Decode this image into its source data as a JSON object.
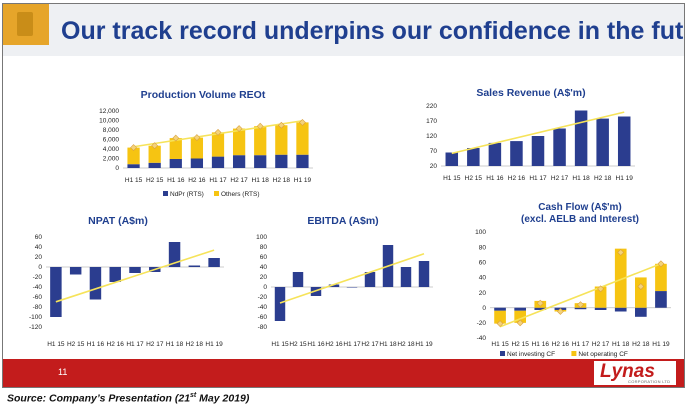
{
  "slide": {
    "title": "Our track record underpins our confidence in the future",
    "page_number": "11",
    "logo_text": "Lynas",
    "logo_subtext": "CORPORATION LTD",
    "source_text": "Source: Company’s Presentation (21",
    "source_sup": "st",
    "source_tail": " May 2019)"
  },
  "colors": {
    "navy": "#2b3d8f",
    "yellow": "#f6c412",
    "trend": "#f6e35a",
    "title_blue": "#1f3f8f",
    "footer_red": "#c31c1c"
  },
  "chart_data": [
    {
      "id": "production",
      "type": "bar",
      "stacked": true,
      "title": "Production Volume REOt",
      "categories": [
        "H1 15",
        "H2 15",
        "H1 16",
        "H2 16",
        "H1 17",
        "H2 17",
        "H1 18",
        "H2 18",
        "H1 19"
      ],
      "series": [
        {
          "name": "NdPr (RTS)",
          "values": [
            800,
            1100,
            1900,
            2000,
            2400,
            2700,
            2700,
            2800,
            2800
          ]
        },
        {
          "name": "Others (RTS)",
          "values": [
            3500,
            3600,
            4400,
            4400,
            5100,
            5600,
            6100,
            6200,
            6800
          ]
        }
      ],
      "total_markers": [
        4300,
        4700,
        6300,
        6400,
        7500,
        8300,
        8800,
        9000,
        9600
      ],
      "trendline": true,
      "ylim": [
        0,
        12000
      ],
      "yticks": [
        "0",
        "2,000",
        "4,000",
        "6,000",
        "8,000",
        "10,000",
        "12,000"
      ],
      "legend": [
        "NdPr (RTS)",
        "Others (RTS)"
      ]
    },
    {
      "id": "sales",
      "type": "bar",
      "title": "Sales Revenue (A$'m)",
      "categories": [
        "H1 15",
        "H2 15",
        "H1 16",
        "H2 16",
        "H1 17",
        "H2 17",
        "H1 18",
        "H2 18",
        "H1 19"
      ],
      "values": [
        65,
        80,
        97,
        103,
        120,
        145,
        205,
        178,
        185
      ],
      "trendline": true,
      "ylim": [
        20,
        220
      ],
      "yticks": [
        "20",
        "70",
        "120",
        "170",
        "220"
      ]
    },
    {
      "id": "npat",
      "type": "bar",
      "title": "NPAT (A$m)",
      "categories": [
        "H1 15",
        "H2 15",
        "H1 16",
        "H2 16",
        "H1 17",
        "H2 17",
        "H1 18",
        "H2 18",
        "H1 19"
      ],
      "values": [
        -100,
        -15,
        -65,
        -30,
        -12,
        -10,
        50,
        3,
        18
      ],
      "trendline": true,
      "ylim": [
        -120,
        60
      ],
      "yticks": [
        "-120",
        "-100",
        "-80",
        "-60",
        "-40",
        "-20",
        "0",
        "20",
        "40",
        "60"
      ]
    },
    {
      "id": "ebitda",
      "type": "bar",
      "title": "EBITDA (A$m)",
      "categories": [
        "H1 15",
        "H2 15",
        "H1 16",
        "H2 16",
        "H1 17",
        "H2 17",
        "H1 18",
        "H2 18",
        "H1 19"
      ],
      "values": [
        -68,
        30,
        -18,
        5,
        0,
        30,
        84,
        40,
        52
      ],
      "trendline": true,
      "ylim": [
        -80,
        100
      ],
      "yticks": [
        "-80",
        "-60",
        "-40",
        "-20",
        "0",
        "20",
        "40",
        "60",
        "80",
        "100"
      ]
    },
    {
      "id": "cashflow",
      "type": "bar",
      "stacked": true,
      "title": "Cash Flow (A$'m)",
      "subtitle": "(excl. AELB and Interest)",
      "categories": [
        "H1 15",
        "H2 15",
        "H1 16",
        "H2 16",
        "H1 17",
        "H2 17",
        "H1 18",
        "H2 18",
        "H1 19"
      ],
      "series": [
        {
          "name": "Net investing CF",
          "values": [
            -4,
            -4,
            -3,
            -3,
            -2,
            -3,
            -5,
            -12,
            22
          ]
        },
        {
          "name": "Net operating CF",
          "values": [
            -17,
            -16,
            9,
            -2,
            6,
            28,
            78,
            40,
            36
          ]
        }
      ],
      "net_markers": [
        -21,
        -20,
        6,
        -5,
        4,
        25,
        73,
        28,
        58
      ],
      "trendline": true,
      "ylim": [
        -40,
        100
      ],
      "yticks": [
        "-40",
        "-20",
        "0",
        "20",
        "40",
        "60",
        "80",
        "100"
      ],
      "legend": [
        "Net investing CF",
        "Net operating CF"
      ]
    }
  ]
}
